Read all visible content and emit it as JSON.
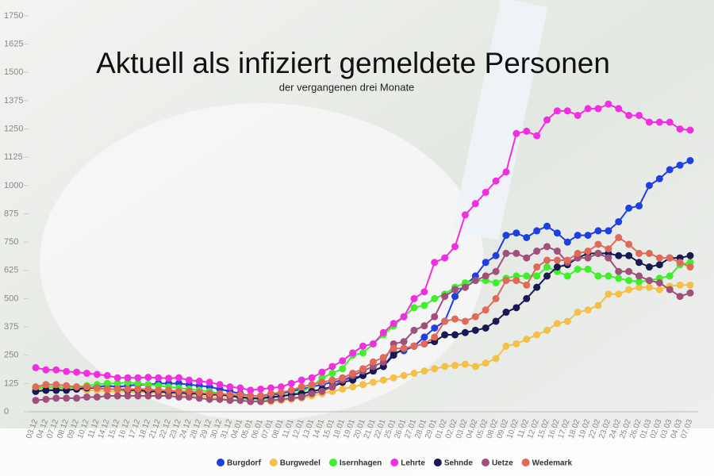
{
  "chart_data": {
    "type": "line",
    "title": "Aktuell als infiziert gemeldete Personen",
    "subtitle": "der vergangenen drei Monate",
    "categories": [
      "03.12",
      "04.12",
      "07.12",
      "08.12",
      "09.12",
      "10.12",
      "11.12",
      "14.12",
      "15.12",
      "16.12",
      "17.12",
      "18.12",
      "21.12",
      "22.12",
      "23.12",
      "24.12",
      "28.12",
      "29.12",
      "30.12",
      "31.12",
      "04.01",
      "05.01",
      "06.01",
      "07.01",
      "08.01",
      "11.01",
      "12.01",
      "13.01",
      "14.01",
      "15.01",
      "18.01",
      "19.01",
      "20.01",
      "21.01",
      "22.01",
      "25.01",
      "26.01",
      "27.01",
      "28.01",
      "29.01",
      "01.02",
      "02.02",
      "03.02",
      "04.02",
      "05.02",
      "08.02",
      "09.02",
      "10.02",
      "11.02",
      "12.02",
      "15.02",
      "16.02",
      "17.02",
      "18.02",
      "19.02",
      "22.02",
      "23.02",
      "24.02",
      "25.02",
      "26.02",
      "01.03",
      "02.03",
      "03.03",
      "04.03",
      "07.03"
    ],
    "series": [
      {
        "name": "Burgdorf",
        "color": "#1f3fe0",
        "values": [
          90,
          95,
          95,
          100,
          100,
          105,
          110,
          115,
          110,
          115,
          120,
          120,
          125,
          125,
          125,
          120,
          115,
          110,
          100,
          90,
          80,
          70,
          70,
          75,
          80,
          90,
          100,
          110,
          120,
          130,
          140,
          150,
          160,
          180,
          200,
          260,
          270,
          290,
          330,
          370,
          400,
          510,
          560,
          600,
          660,
          690,
          780,
          790,
          770,
          800,
          820,
          790,
          750,
          780,
          780,
          800,
          800,
          840,
          900,
          910,
          1000,
          1030,
          1070,
          1090,
          1110
        ]
      },
      {
        "name": "Burgwedel",
        "color": "#f3c04a",
        "values": [
          100,
          105,
          105,
          100,
          100,
          95,
          95,
          90,
          90,
          90,
          85,
          85,
          80,
          80,
          75,
          70,
          70,
          65,
          60,
          55,
          50,
          45,
          45,
          45,
          50,
          55,
          60,
          70,
          80,
          90,
          100,
          110,
          120,
          130,
          140,
          150,
          160,
          170,
          180,
          190,
          200,
          205,
          210,
          200,
          215,
          235,
          290,
          300,
          320,
          340,
          360,
          390,
          400,
          440,
          450,
          470,
          520,
          520,
          540,
          550,
          550,
          540,
          555,
          560,
          560
        ]
      },
      {
        "name": "Isernhagen",
        "color": "#3ef02a",
        "values": [
          105,
          110,
          110,
          105,
          110,
          115,
          120,
          125,
          125,
          130,
          125,
          120,
          115,
          110,
          105,
          100,
          95,
          90,
          80,
          70,
          60,
          55,
          55,
          60,
          65,
          75,
          90,
          110,
          150,
          170,
          190,
          250,
          260,
          300,
          340,
          380,
          420,
          460,
          470,
          500,
          520,
          550,
          570,
          580,
          580,
          570,
          590,
          600,
          600,
          600,
          640,
          620,
          600,
          630,
          630,
          600,
          600,
          590,
          580,
          575,
          580,
          590,
          600,
          650,
          660
        ]
      },
      {
        "name": "Lehrte",
        "color": "#f030e0",
        "values": [
          195,
          185,
          185,
          178,
          175,
          170,
          165,
          160,
          150,
          150,
          150,
          152,
          150,
          148,
          150,
          140,
          135,
          130,
          120,
          110,
          105,
          95,
          100,
          105,
          110,
          125,
          140,
          150,
          175,
          200,
          225,
          260,
          290,
          300,
          350,
          390,
          420,
          500,
          530,
          660,
          680,
          730,
          870,
          920,
          970,
          1020,
          1060,
          1230,
          1240,
          1220,
          1290,
          1330,
          1330,
          1310,
          1340,
          1340,
          1360,
          1340,
          1310,
          1310,
          1280,
          1280,
          1280,
          1250,
          1245
        ]
      },
      {
        "name": "Sehnde",
        "color": "#161a50",
        "values": [
          90,
          95,
          95,
          95,
          100,
          105,
          105,
          100,
          100,
          95,
          95,
          90,
          90,
          85,
          85,
          80,
          80,
          75,
          75,
          70,
          65,
          60,
          60,
          65,
          70,
          75,
          80,
          90,
          100,
          110,
          130,
          140,
          160,
          180,
          200,
          250,
          280,
          290,
          300,
          310,
          340,
          340,
          350,
          360,
          370,
          400,
          440,
          460,
          500,
          550,
          600,
          640,
          650,
          680,
          700,
          700,
          700,
          690,
          690,
          660,
          640,
          650,
          680,
          680,
          690
        ]
      },
      {
        "name": "Uetze",
        "color": "#a0507a",
        "values": [
          50,
          55,
          60,
          60,
          60,
          65,
          65,
          70,
          70,
          70,
          70,
          70,
          70,
          70,
          65,
          65,
          60,
          55,
          55,
          50,
          50,
          45,
          45,
          50,
          55,
          60,
          65,
          80,
          90,
          110,
          140,
          160,
          180,
          200,
          220,
          300,
          310,
          360,
          380,
          420,
          510,
          540,
          550,
          580,
          600,
          620,
          700,
          700,
          680,
          710,
          730,
          710,
          660,
          680,
          680,
          700,
          680,
          620,
          620,
          600,
          580,
          570,
          540,
          510,
          525
        ]
      },
      {
        "name": "Wedemark",
        "color": "#e06a5a",
        "values": [
          110,
          120,
          120,
          115,
          110,
          110,
          105,
          100,
          100,
          100,
          100,
          100,
          95,
          95,
          90,
          90,
          85,
          80,
          80,
          75,
          75,
          70,
          70,
          80,
          85,
          95,
          110,
          120,
          130,
          140,
          150,
          170,
          190,
          220,
          240,
          280,
          280,
          290,
          300,
          330,
          400,
          410,
          400,
          420,
          450,
          500,
          580,
          580,
          560,
          640,
          670,
          670,
          670,
          700,
          710,
          740,
          720,
          770,
          740,
          700,
          700,
          680,
          680,
          660,
          640
        ]
      }
    ],
    "ylim": [
      0,
      1750
    ],
    "yticks": [
      0,
      125,
      250,
      375,
      500,
      625,
      750,
      875,
      1000,
      1125,
      1250,
      1375,
      1500,
      1625,
      1750
    ],
    "grid": false
  }
}
